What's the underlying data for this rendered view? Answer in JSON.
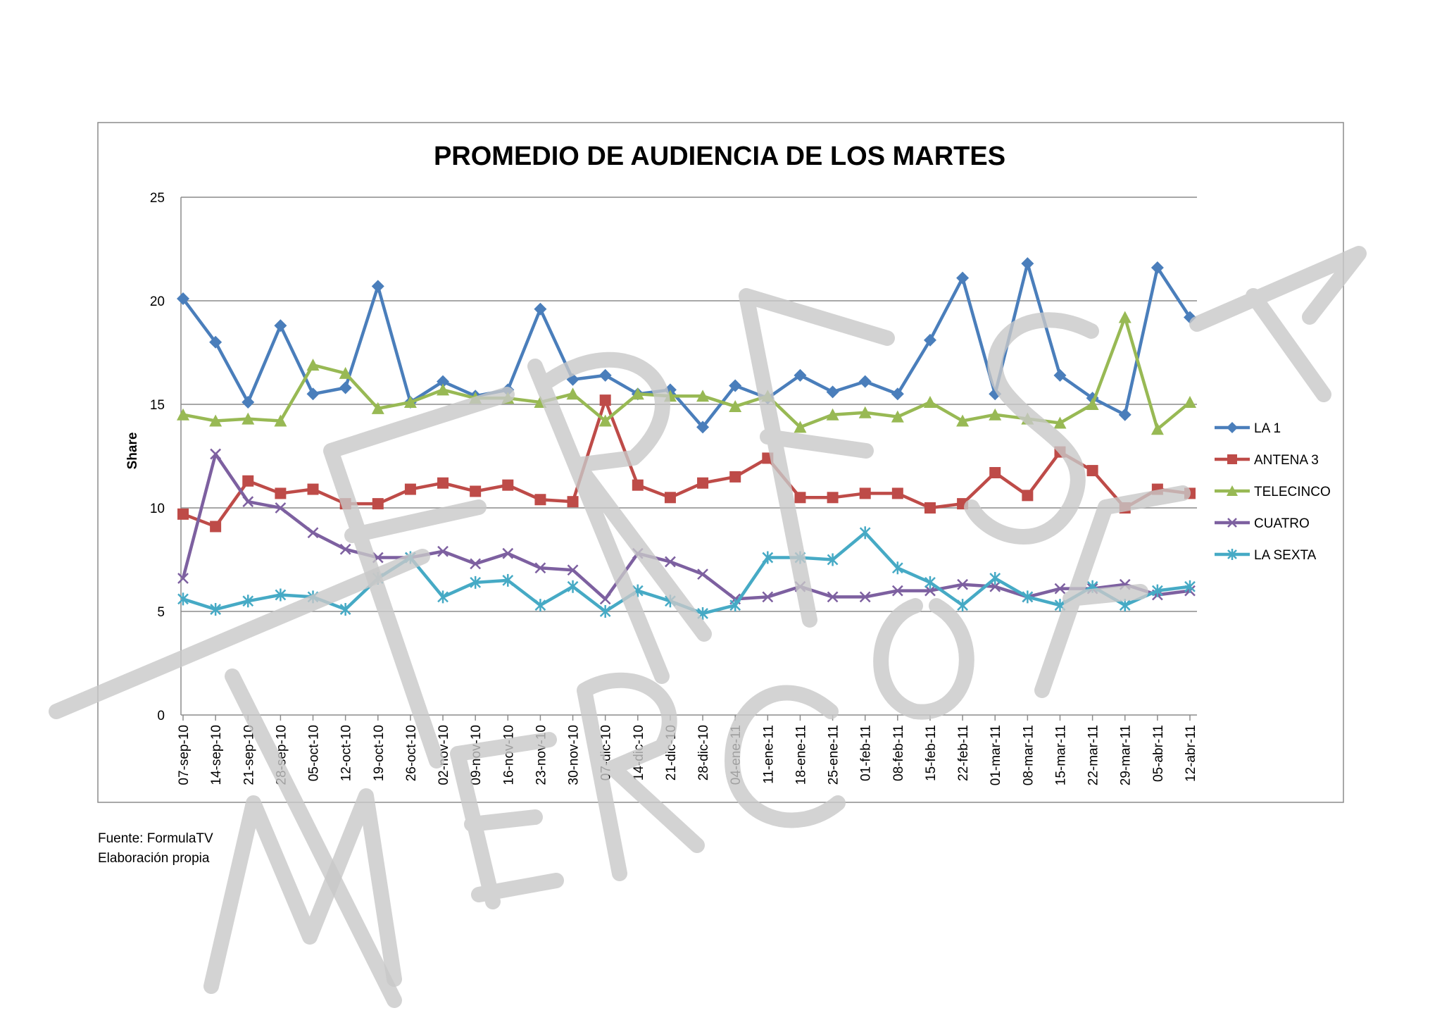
{
  "footnote": {
    "source": "Fuente: FormulaTV",
    "note": "Elaboración propia"
  },
  "chart_data": {
    "type": "line",
    "title": "PROMEDIO DE AUDIENCIA DE LOS MARTES",
    "xlabel": "",
    "ylabel": "Share",
    "ylim": [
      0,
      25
    ],
    "yticks": [
      0,
      5,
      10,
      15,
      20,
      25
    ],
    "grid": true,
    "legend_position": "right",
    "categories": [
      "07-sep-10",
      "14-sep-10",
      "21-sep-10",
      "28-sep-10",
      "05-oct-10",
      "12-oct-10",
      "19-oct-10",
      "26-oct-10",
      "02-nov-10",
      "09-nov-10",
      "16-nov-10",
      "23-nov-10",
      "30-nov-10",
      "07-dic-10",
      "14-dic-10",
      "21-dic-10",
      "28-dic-10",
      "04-ene-11",
      "11-ene-11",
      "18-ene-11",
      "25-ene-11",
      "01-feb-11",
      "08-feb-11",
      "15-feb-11",
      "22-feb-11",
      "01-mar-11",
      "08-mar-11",
      "15-mar-11",
      "22-mar-11",
      "29-mar-11",
      "05-abr-11",
      "12-abr-11"
    ],
    "series": [
      {
        "name": "LA 1",
        "color": "#4a7ebb",
        "marker": "diamond",
        "values": [
          20.1,
          18.0,
          15.1,
          18.8,
          15.5,
          15.8,
          20.7,
          15.1,
          16.1,
          15.4,
          15.7,
          19.6,
          16.2,
          16.4,
          15.5,
          15.7,
          13.9,
          15.9,
          15.3,
          16.4,
          15.6,
          16.1,
          15.5,
          18.1,
          21.1,
          15.5,
          21.8,
          16.4,
          15.3,
          14.5,
          21.6,
          19.2
        ]
      },
      {
        "name": "ANTENA 3",
        "color": "#be4b48",
        "marker": "square",
        "values": [
          9.7,
          9.1,
          11.3,
          10.7,
          10.9,
          10.2,
          10.2,
          10.9,
          11.2,
          10.8,
          11.1,
          10.4,
          10.3,
          15.2,
          11.1,
          10.5,
          11.2,
          11.5,
          12.4,
          10.5,
          10.5,
          10.7,
          10.7,
          10.0,
          10.2,
          11.7,
          10.6,
          12.7,
          11.8,
          10.0,
          10.9,
          10.7
        ]
      },
      {
        "name": "TELECINCO",
        "color": "#98b954",
        "marker": "triangle",
        "values": [
          14.5,
          14.2,
          14.3,
          14.2,
          16.9,
          16.5,
          14.8,
          15.1,
          15.7,
          15.3,
          15.3,
          15.1,
          15.5,
          14.2,
          15.5,
          15.4,
          15.4,
          14.9,
          15.4,
          13.9,
          14.5,
          14.6,
          14.4,
          15.1,
          14.2,
          14.5,
          14.3,
          14.1,
          15.0,
          19.2,
          13.8,
          15.1
        ]
      },
      {
        "name": "CUATRO",
        "color": "#7d60a0",
        "marker": "x",
        "values": [
          6.6,
          12.6,
          10.3,
          10.0,
          8.8,
          8.0,
          7.6,
          7.6,
          7.9,
          7.3,
          7.8,
          7.1,
          7.0,
          5.6,
          7.8,
          7.4,
          6.8,
          5.6,
          5.7,
          6.2,
          5.7,
          5.7,
          6.0,
          6.0,
          6.3,
          6.2,
          5.7,
          6.1,
          6.1,
          6.3,
          5.8,
          6.0
        ]
      },
      {
        "name": "LA SEXTA",
        "color": "#46aac5",
        "marker": "star",
        "values": [
          5.6,
          5.1,
          5.5,
          5.8,
          5.7,
          5.1,
          6.6,
          7.6,
          5.7,
          6.4,
          6.5,
          5.3,
          6.2,
          5.0,
          6.0,
          5.5,
          4.9,
          5.3,
          7.6,
          7.6,
          7.5,
          8.8,
          7.1,
          6.4,
          5.3,
          6.6,
          5.7,
          5.3,
          6.2,
          5.3,
          6.0,
          6.2
        ]
      }
    ]
  }
}
